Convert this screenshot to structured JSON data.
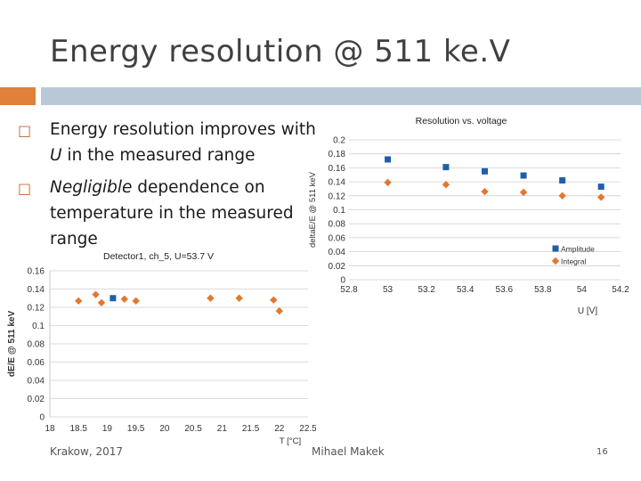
{
  "slide": {
    "title": "Energy resolution @ 511 ke.V",
    "bullets": [
      {
        "italic": "",
        "text": "Energy resolution improves with ",
        "italic2": "U",
        "text2": " in the measured range"
      },
      {
        "italic": "Negligible",
        "text": " dependence on temperature in the measured range",
        "italic2": "",
        "text2": ""
      }
    ],
    "footer": {
      "left": "Krakow, 2017",
      "center": "Mihael Makek",
      "page": "16"
    },
    "colors": {
      "accent_orange": "#e0803a",
      "accent_blue": "#b9c8d6",
      "amplitude": "#1f5fa8",
      "integral": "#e3782d"
    }
  },
  "chart_data": [
    {
      "type": "scatter",
      "title": "Resolution vs. voltage",
      "xlabel": "U [V]",
      "ylabel": "deltaE/E @ 511 keV",
      "xlim": [
        52.8,
        54.2
      ],
      "ylim": [
        0,
        0.2
      ],
      "xticks": [
        "52.8",
        "53",
        "53.2",
        "53.4",
        "53.6",
        "53.8",
        "54",
        "54.2"
      ],
      "yticks": [
        "0",
        "0.02",
        "0.04",
        "0.06",
        "0.08",
        "0.1",
        "0.12",
        "0.14",
        "0.16",
        "0.18",
        "0.2"
      ],
      "legend_position": "bottom-right",
      "series": [
        {
          "name": "Amplitude",
          "marker": "square",
          "x": [
            53.0,
            53.3,
            53.5,
            53.7,
            53.9,
            54.1
          ],
          "y": [
            0.172,
            0.161,
            0.155,
            0.149,
            0.142,
            0.133
          ]
        },
        {
          "name": "Integral",
          "marker": "diamond",
          "x": [
            53.0,
            53.3,
            53.5,
            53.7,
            53.9,
            54.1
          ],
          "y": [
            0.139,
            0.136,
            0.126,
            0.125,
            0.12,
            0.118
          ]
        }
      ]
    },
    {
      "type": "scatter",
      "title": "Detector1, ch_5, U=53.7 V",
      "xlabel": "T [°C]",
      "ylabel": "dE/E @ 511 keV",
      "xlim": [
        18,
        22.5
      ],
      "ylim": [
        0,
        0.16
      ],
      "xticks": [
        "18",
        "18.5",
        "19",
        "19.5",
        "20",
        "20.5",
        "21",
        "21.5",
        "22",
        "22.5"
      ],
      "yticks": [
        "0",
        "0.02",
        "0.04",
        "0.06",
        "0.08",
        "0.1",
        "0.12",
        "0.14",
        "0.16"
      ],
      "series": [
        {
          "name": "Amplitude",
          "marker": "square",
          "x": [
            19.1
          ],
          "y": [
            0.13
          ]
        },
        {
          "name": "Integral",
          "marker": "diamond",
          "x": [
            18.5,
            18.8,
            18.9,
            19.3,
            19.5,
            20.8,
            21.3,
            21.9,
            22.0
          ],
          "y": [
            0.127,
            0.134,
            0.125,
            0.129,
            0.127,
            0.13,
            0.13,
            0.128,
            0.116
          ]
        }
      ]
    }
  ]
}
